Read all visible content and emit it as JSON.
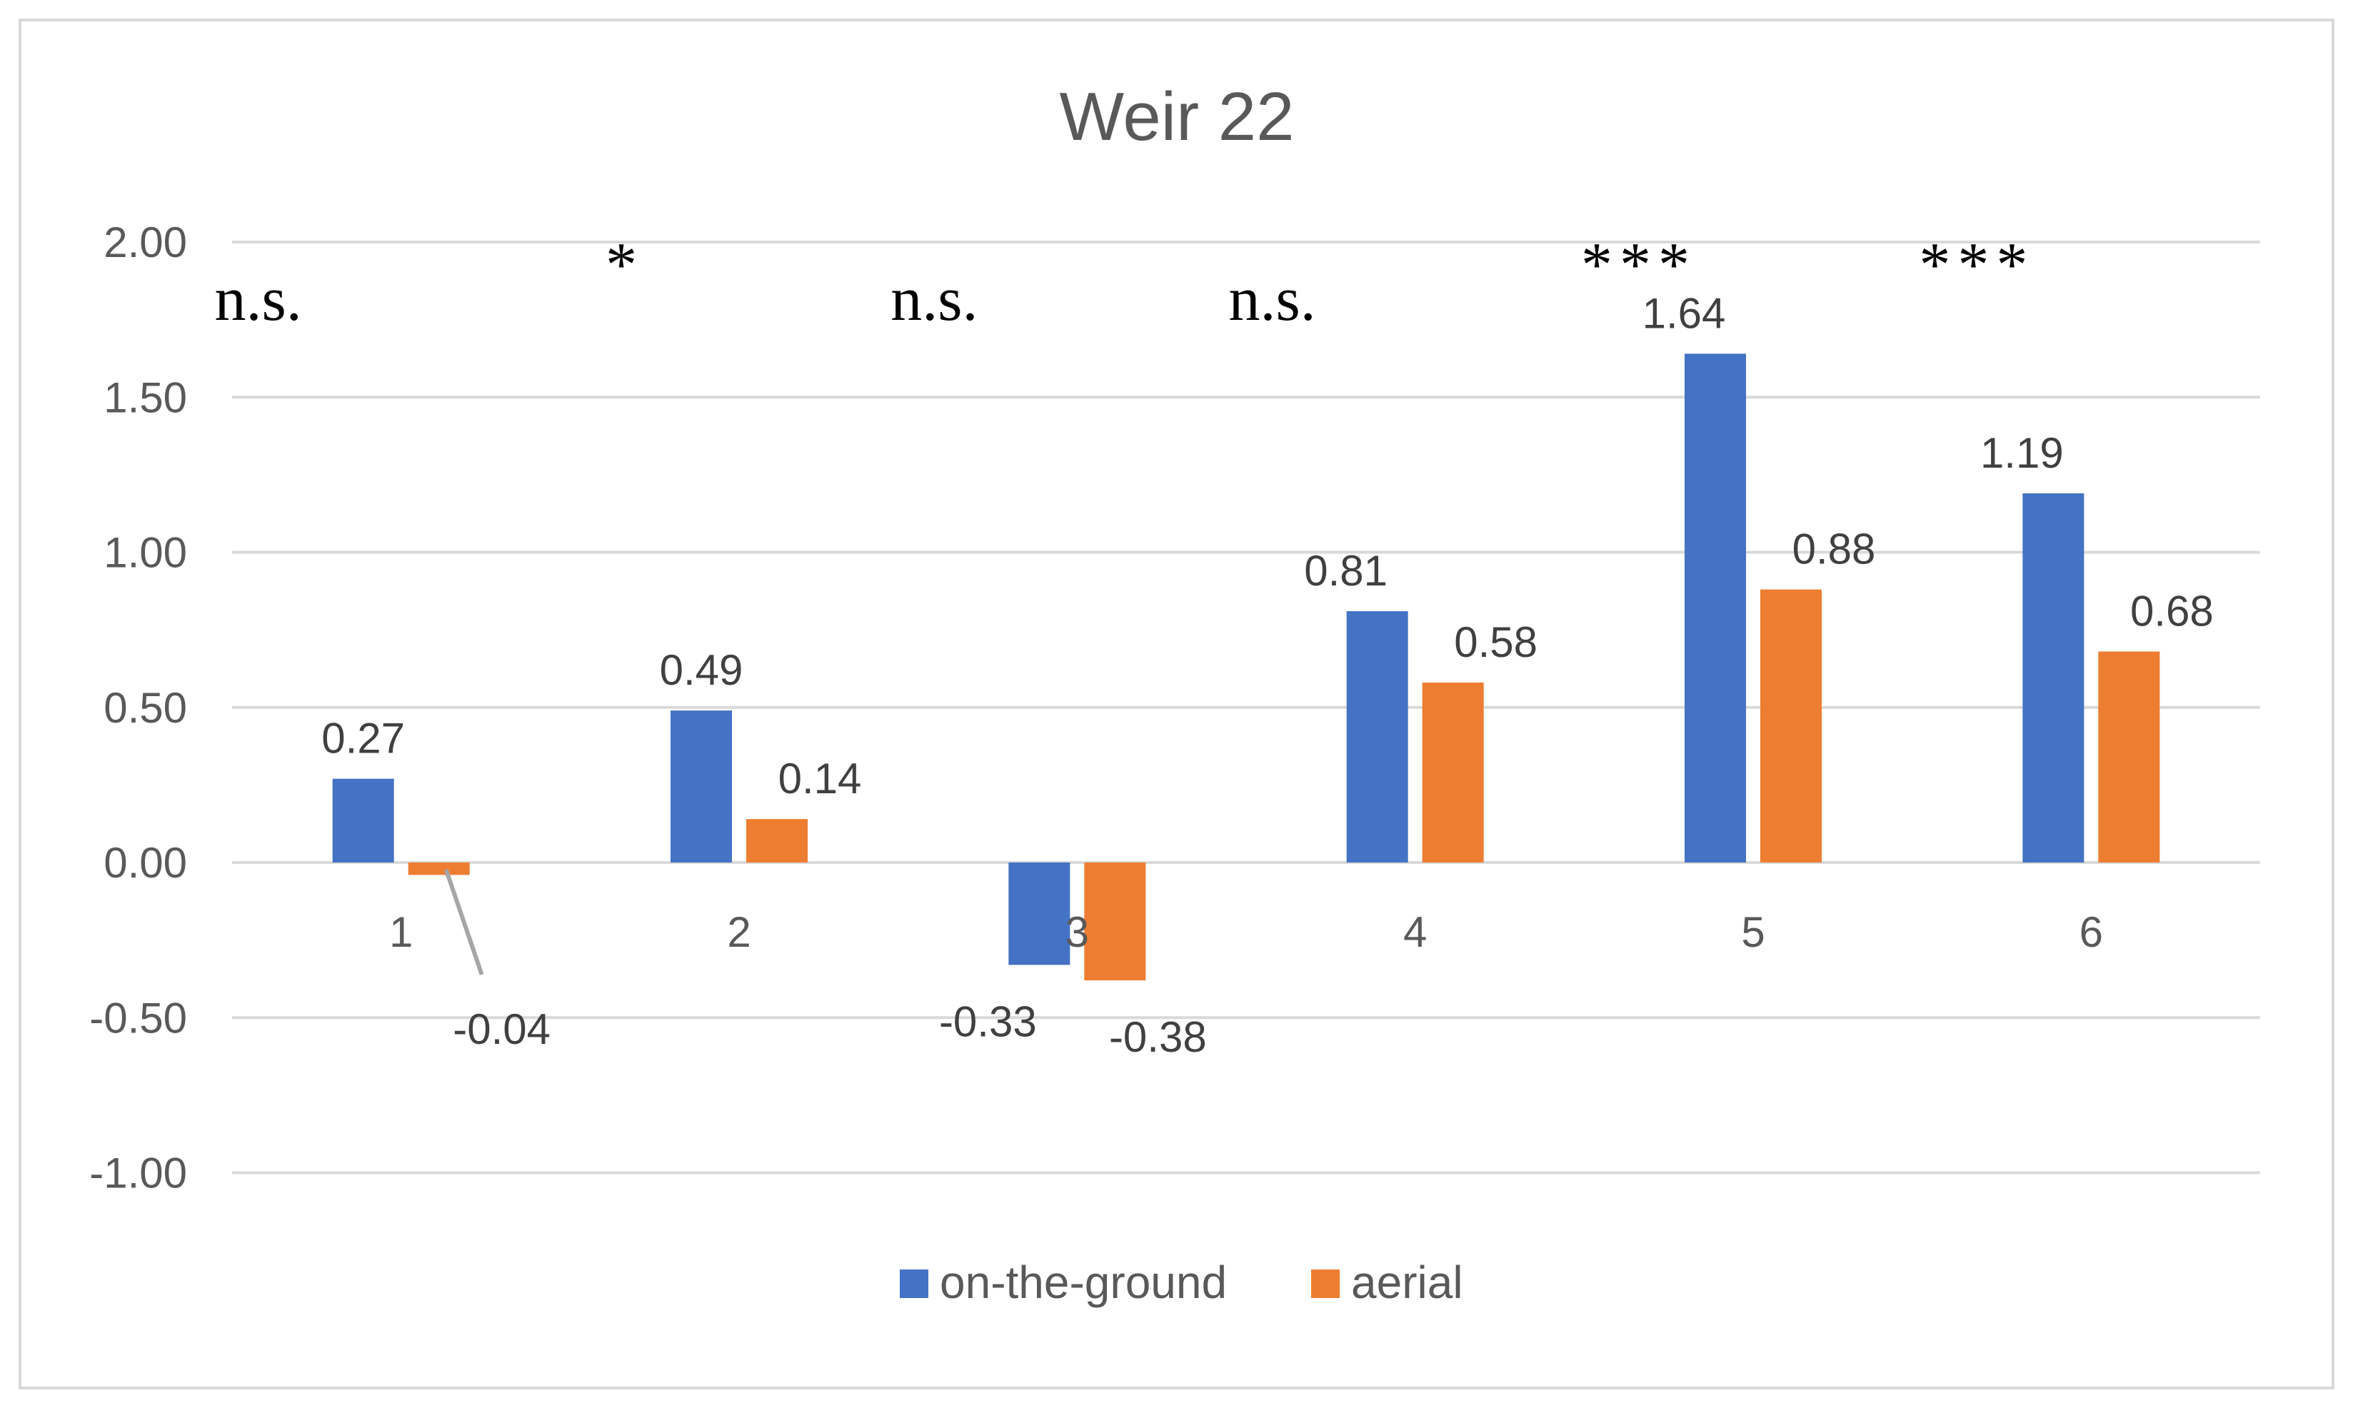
{
  "chart_data": {
    "type": "bar",
    "title": "Weir 22",
    "categories": [
      "1",
      "2",
      "3",
      "4",
      "5",
      "6"
    ],
    "series": [
      {
        "name": "on-the-ground",
        "color": "#4472C4",
        "values": [
          0.27,
          0.49,
          -0.33,
          0.81,
          1.64,
          1.19
        ],
        "labels": [
          "0.27",
          "0.49",
          "-0.33",
          "0.81",
          "1.64",
          "1.19"
        ]
      },
      {
        "name": "aerial",
        "color": "#ED7D31",
        "values": [
          -0.04,
          0.14,
          -0.38,
          0.58,
          0.88,
          0.68
        ],
        "labels": [
          "-0.04",
          "0.14",
          "-0.38",
          "0.58",
          "0.88",
          "0.68"
        ]
      }
    ],
    "significance": [
      "n.s.",
      "*",
      "n.s.",
      "n.s.",
      "***",
      "***"
    ],
    "ylim": [
      -1.0,
      2.0
    ],
    "yticks": [
      "2.00",
      "1.50",
      "1.00",
      "0.50",
      "0.00",
      "-0.50",
      "-1.00"
    ],
    "xlabel": "",
    "ylabel": "",
    "grid": true,
    "legend_position": "bottom"
  }
}
